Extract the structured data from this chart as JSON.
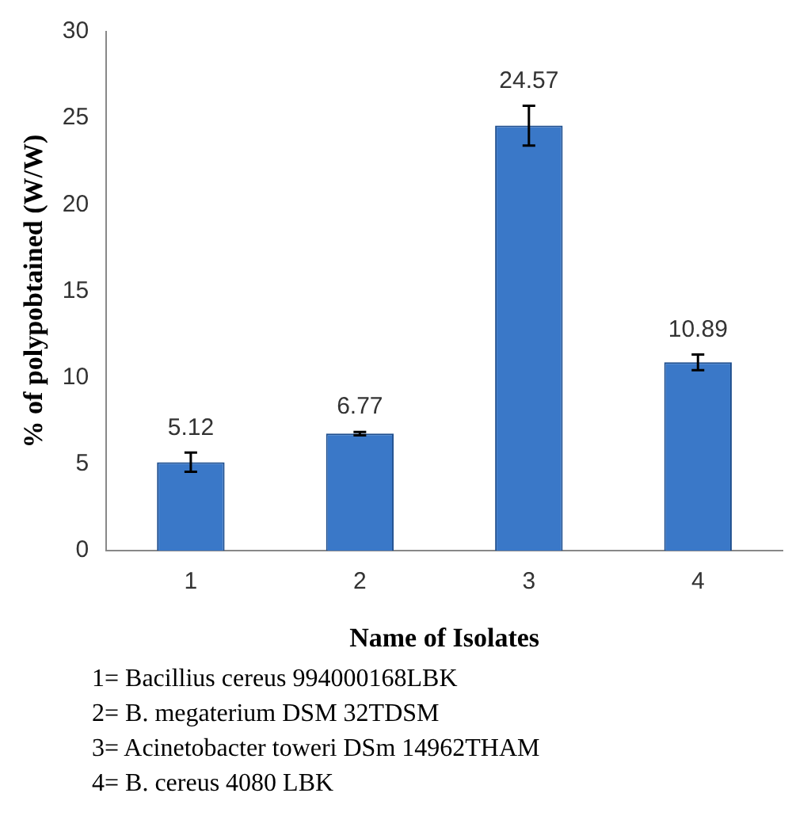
{
  "chart_data": {
    "type": "bar",
    "categories": [
      "1",
      "2",
      "3",
      "4"
    ],
    "values": [
      5.12,
      6.77,
      24.57,
      10.89
    ],
    "errors": [
      0.55,
      0.1,
      1.15,
      0.45
    ],
    "color": "#3a78c8",
    "data_labels": true,
    "xlabel": "Name of Isolates",
    "ylabel": "% of polypobtained (W/W)",
    "ylim": [
      0,
      30
    ],
    "yticks": [
      0,
      5,
      10,
      15,
      20,
      25,
      30
    ],
    "grid": false,
    "legend": false,
    "annotations": [
      "1= Bacillius cereus 994000168LBK",
      "2= B. megaterium DSM 32TDSM",
      "3= Acinetobacter toweri DSm 14962THAM",
      "4= B. cereus 4080 LBK"
    ]
  }
}
